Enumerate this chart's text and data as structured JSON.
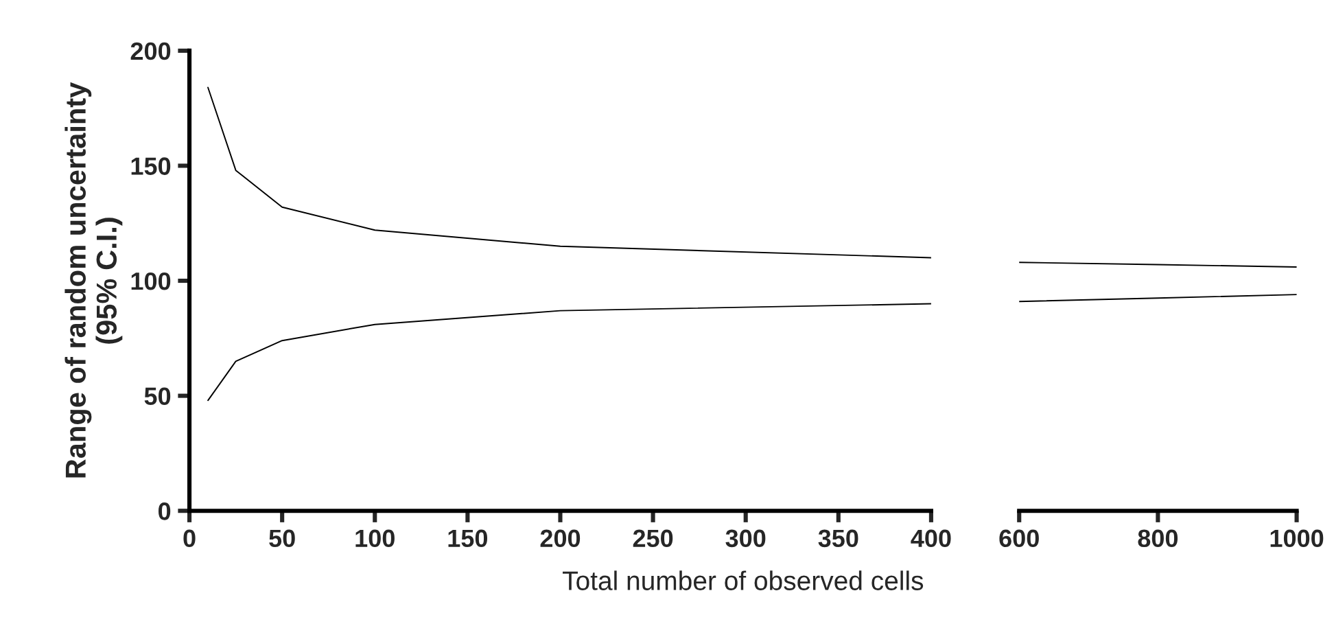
{
  "chart_data": [
    {
      "type": "line",
      "ylabel": "Range of random uncertainty\n(95% C.I.)",
      "xlabel": "Total number of observed cells",
      "xlim": [
        0,
        400
      ],
      "xticks": [
        0,
        50,
        100,
        150,
        200,
        250,
        300,
        350,
        400
      ],
      "ylim": [
        0,
        200
      ],
      "yticks": [
        0,
        50,
        100,
        150,
        200
      ],
      "grid": false,
      "legend": false,
      "marker": "none",
      "line_style": "solid",
      "series": [
        {
          "color": "#000000",
          "x": [
            10,
            25,
            50,
            100,
            200,
            400
          ],
          "values": [
            184,
            148,
            132,
            122,
            115,
            110
          ]
        },
        {
          "color": "#000000",
          "x": [
            10,
            25,
            50,
            100,
            200,
            400
          ],
          "values": [
            48,
            65,
            74,
            81,
            87,
            90
          ]
        }
      ]
    },
    {
      "type": "line",
      "xlim": [
        600,
        1000
      ],
      "xticks": [
        600,
        800,
        1000
      ],
      "ylim": [
        0,
        200
      ],
      "tick_labels": "x",
      "grid": false,
      "legend": false,
      "marker": "none",
      "line_style": "solid",
      "series": [
        {
          "color": "#000000",
          "x": [
            600,
            800,
            1000
          ],
          "values": [
            108,
            107,
            106
          ]
        },
        {
          "color": "#000000",
          "x": [
            600,
            800,
            1000
          ],
          "values": [
            91,
            92.5,
            94
          ]
        }
      ]
    }
  ]
}
